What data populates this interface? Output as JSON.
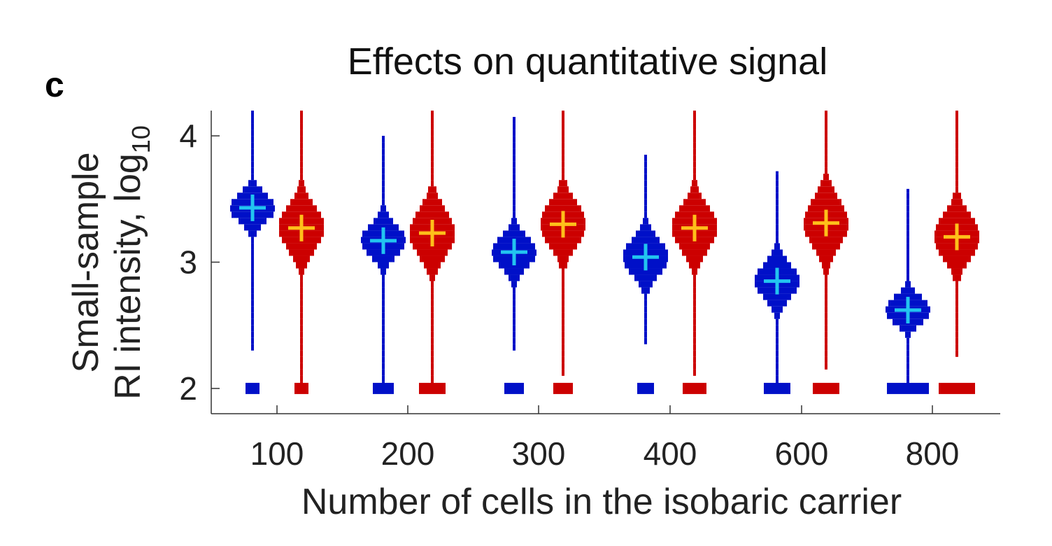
{
  "panel_label": "c",
  "chart_data": {
    "type": "violin",
    "title": "Effects on quantitative signal",
    "xlabel": "Number of cells in the isobaric carrier",
    "ylabel": {
      "line1": "Small-sample",
      "line2": "RI intensity, log",
      "subscript": "10"
    },
    "ylim": [
      1.8,
      4.2
    ],
    "yticks": [
      2,
      3,
      4
    ],
    "categories": [
      "100",
      "200",
      "300",
      "400",
      "600",
      "800"
    ],
    "grid": false,
    "legend": "none",
    "colors": {
      "series_a": "#0010c8",
      "series_b": "#cc0000",
      "mean_a": "#22c4f0",
      "mean_b": "#ffbf1a"
    },
    "series": [
      {
        "color_key": "a",
        "means": [
          3.43,
          3.17,
          3.08,
          3.04,
          2.85,
          2.62
        ],
        "min": [
          2.3,
          2.0,
          2.3,
          2.35,
          2.0,
          2.0
        ],
        "max": [
          4.2,
          4.0,
          4.15,
          3.85,
          3.72,
          3.58
        ],
        "spread": [
          0.11,
          0.12,
          0.12,
          0.14,
          0.13,
          0.1
        ],
        "floor_fraction": [
          0.12,
          0.18,
          0.16,
          0.14,
          0.22,
          0.35
        ]
      },
      {
        "color_key": "b",
        "means": [
          3.27,
          3.23,
          3.3,
          3.27,
          3.31,
          3.2
        ],
        "min": [
          2.0,
          2.0,
          2.1,
          2.1,
          2.15,
          2.25
        ],
        "max": [
          4.2,
          4.2,
          4.2,
          4.2,
          4.2,
          4.2
        ],
        "spread": [
          0.17,
          0.18,
          0.17,
          0.17,
          0.18,
          0.17
        ],
        "floor_fraction": [
          0.12,
          0.22,
          0.16,
          0.2,
          0.22,
          0.3
        ]
      }
    ]
  }
}
